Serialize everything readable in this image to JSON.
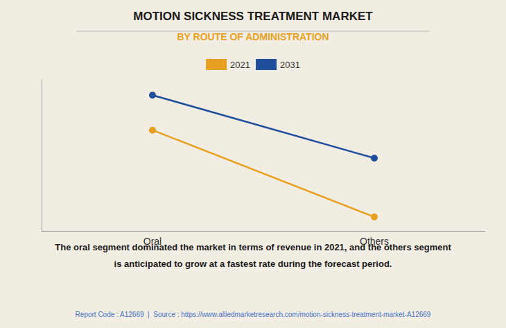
{
  "chart_data": {
    "type": "line",
    "title": "MOTION SICKNESS TREATMENT MARKET",
    "subtitle": "BY ROUTE OF ADMINISTRATION",
    "categories": [
      "Oral",
      "Others"
    ],
    "series": [
      {
        "name": "2021",
        "color": "#E8A020",
        "values": [
          0.72,
          0.1
        ]
      },
      {
        "name": "2031",
        "color": "#1F4E9C",
        "values": [
          0.97,
          0.52
        ]
      }
    ],
    "ylim": [
      0.0,
      1.08
    ],
    "yticks": [],
    "grid": false,
    "tick_labels": "x",
    "legend": "top",
    "marker": "circle",
    "annotations": [
      "The oral segment dominated the market in terms of revenue in 2021, and the others segment",
      "is anticipated to grow at a fastest rate during the forecast period.",
      "Report Code : A12669  |  Source : https://www.alliedmarketresearch.com/motion-sickness-treatment-market-A12669"
    ]
  }
}
